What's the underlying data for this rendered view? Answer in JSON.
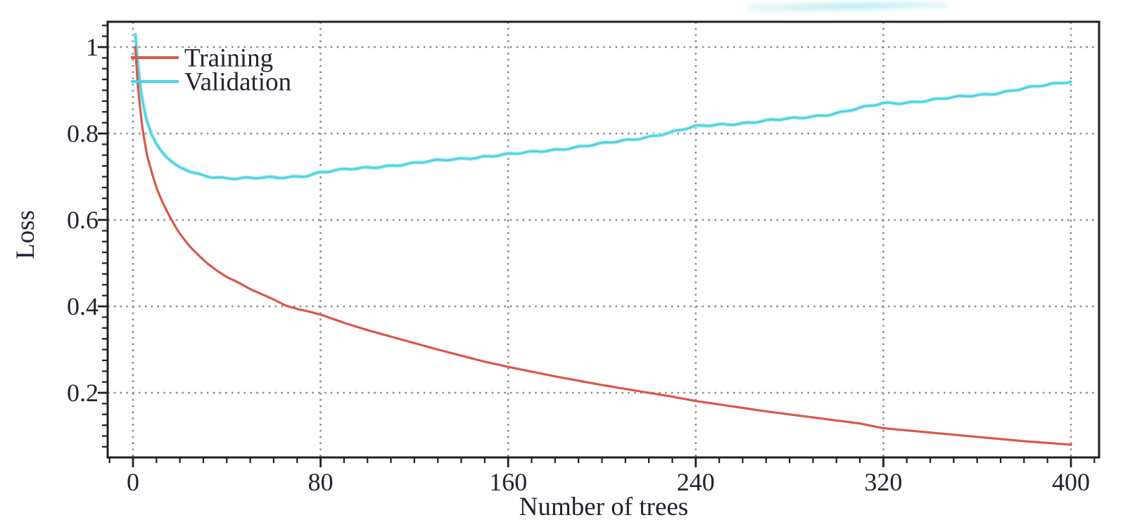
{
  "chart_data": {
    "type": "line",
    "title": "",
    "xlabel": "Number of trees",
    "ylabel": "Loss",
    "xlim": [
      -11,
      412
    ],
    "ylim": [
      0.05,
      1.06
    ],
    "x_ticks": [
      0,
      80,
      160,
      240,
      320,
      400
    ],
    "x_tick_labels": [
      "0",
      "80",
      "160",
      "240",
      "320",
      "400"
    ],
    "y_ticks": [
      0.2,
      0.4,
      0.6,
      0.8,
      1
    ],
    "y_tick_labels": [
      "0.2",
      "0.4",
      "0.6",
      "0.8",
      "1"
    ],
    "x_minor_tick_step": 10,
    "y_minor_tick_step": 0.025,
    "grid": "dotted at major ticks, both axes",
    "legend_position": "top-left inside plot",
    "series": [
      {
        "name": "Training",
        "color": "#d8594b",
        "x": [
          1,
          2,
          3,
          4,
          5,
          6,
          8,
          10,
          12,
          14,
          16,
          18,
          20,
          24,
          28,
          32,
          36,
          40,
          45,
          50,
          55,
          60,
          65,
          70,
          75,
          80,
          90,
          100,
          110,
          120,
          130,
          140,
          150,
          160,
          170,
          180,
          190,
          200,
          210,
          220,
          230,
          240,
          250,
          260,
          270,
          280,
          290,
          300,
          310,
          320,
          330,
          340,
          350,
          360,
          370,
          380,
          390,
          400
        ],
        "y": [
          1.0,
          0.915,
          0.86,
          0.815,
          0.78,
          0.75,
          0.71,
          0.675,
          0.648,
          0.625,
          0.605,
          0.585,
          0.568,
          0.54,
          0.518,
          0.498,
          0.482,
          0.468,
          0.455,
          0.44,
          0.428,
          0.416,
          0.402,
          0.394,
          0.388,
          0.381,
          0.362,
          0.345,
          0.33,
          0.315,
          0.3,
          0.286,
          0.272,
          0.26,
          0.249,
          0.238,
          0.228,
          0.218,
          0.209,
          0.2,
          0.191,
          0.181,
          0.173,
          0.165,
          0.157,
          0.15,
          0.143,
          0.136,
          0.129,
          0.118,
          0.113,
          0.108,
          0.103,
          0.098,
          0.093,
          0.088,
          0.084,
          0.08
        ]
      },
      {
        "name": "Validation",
        "color": "#4bd5e2",
        "x": [
          1,
          2,
          3,
          4,
          5,
          6,
          8,
          10,
          12,
          14,
          16,
          18,
          20,
          24,
          28,
          32,
          36,
          40,
          45,
          50,
          55,
          60,
          65,
          70,
          75,
          80,
          90,
          100,
          110,
          120,
          130,
          140,
          150,
          160,
          170,
          180,
          190,
          200,
          210,
          220,
          230,
          240,
          250,
          260,
          270,
          280,
          290,
          300,
          310,
          320,
          330,
          340,
          350,
          360,
          370,
          380,
          390,
          400
        ],
        "y": [
          1.03,
          0.965,
          0.915,
          0.878,
          0.85,
          0.828,
          0.797,
          0.776,
          0.76,
          0.747,
          0.737,
          0.729,
          0.722,
          0.712,
          0.706,
          0.702,
          0.699,
          0.697,
          0.696,
          0.696,
          0.697,
          0.698,
          0.699,
          0.701,
          0.704,
          0.71,
          0.716,
          0.721,
          0.726,
          0.731,
          0.737,
          0.742,
          0.747,
          0.751,
          0.757,
          0.763,
          0.769,
          0.776,
          0.784,
          0.793,
          0.803,
          0.816,
          0.821,
          0.824,
          0.829,
          0.834,
          0.84,
          0.847,
          0.858,
          0.87,
          0.872,
          0.877,
          0.883,
          0.889,
          0.895,
          0.904,
          0.912,
          0.921
        ]
      }
    ]
  },
  "colors": {
    "frame": "#1f1f1f",
    "grid": "#8b8b8b",
    "text": "#20242e",
    "background": "#ffffff",
    "training": "#d8594b",
    "validation": "#4bd5e2",
    "validation_halo": "#c8f0f4"
  }
}
